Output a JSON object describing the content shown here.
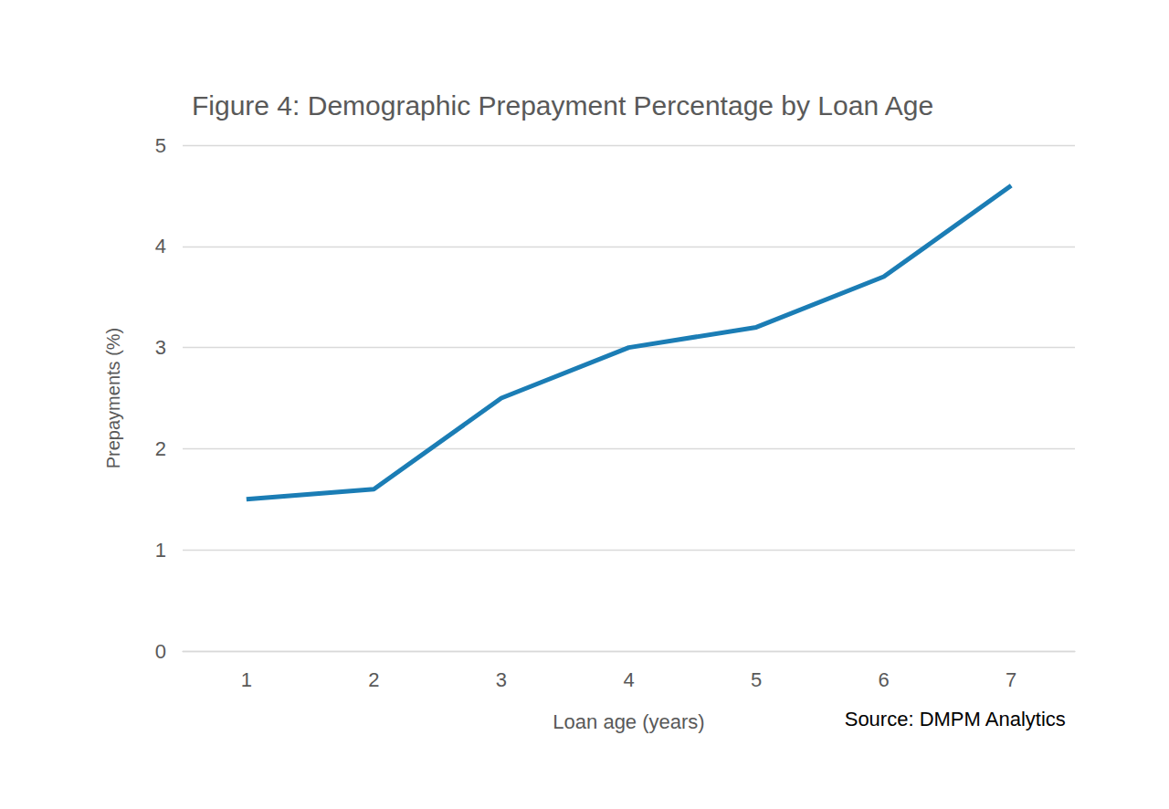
{
  "chart_data": {
    "type": "line",
    "title": "Figure 4: Demographic Prepayment Percentage by Loan Age",
    "x_label": "Loan age (years)",
    "y_label": "Prepayments (%)",
    "annotations": [
      "Source: DMPM Analytics"
    ],
    "categories": [
      "1",
      "2",
      "3",
      "4",
      "5",
      "6",
      "7"
    ],
    "values": [
      1.5,
      1.6,
      2.5,
      3.0,
      3.2,
      3.7,
      4.6
    ],
    "color": "#1b7db5",
    "ylim": [
      0,
      5
    ],
    "yticks": [
      0,
      1,
      2,
      3,
      4,
      5
    ],
    "grid": true
  }
}
